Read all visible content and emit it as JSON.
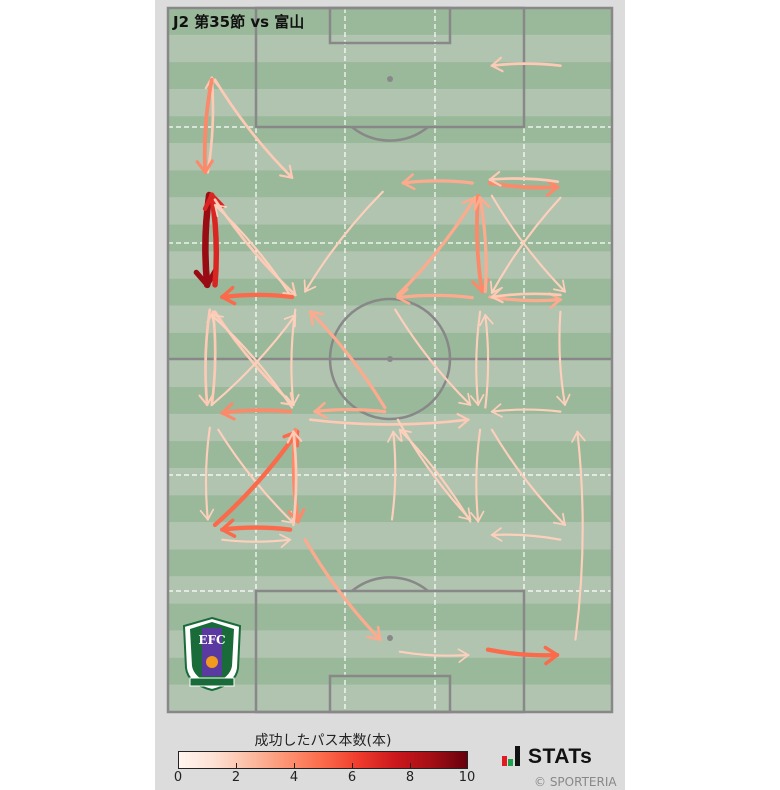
{
  "title": "J2 第35節 vs 富山",
  "colorbar": {
    "title": "成功したパス本数(本)",
    "ticks": [
      "0",
      "2",
      "4",
      "6",
      "8",
      "10"
    ],
    "range": [
      0,
      10
    ],
    "colormap": [
      "#fff5f0",
      "#fee0d2",
      "#fcbba1",
      "#fc9272",
      "#fb6a4a",
      "#ef3b2c",
      "#cb181d",
      "#a50f15",
      "#67000d"
    ]
  },
  "brand": {
    "logo_text": "STATs",
    "credit": "© SPORTERIA"
  },
  "colors": {
    "pitch_dark": "#9ab89a",
    "pitch_light": "#b0c4b0",
    "lines": "#888888",
    "zone_lines": "#ffffff"
  },
  "team_logo": {
    "icon": "ehime-fc-emblem",
    "text": "EFC"
  },
  "chart_data": {
    "type": "pass-map",
    "title": "J2 第35節 vs 富山",
    "units": "meters (x across pitch 0-68, y along pitch 0-105 from top goal line)",
    "passes": [
      {
        "from": [
          60.1,
          8.6
        ],
        "to": [
          49.6,
          8.6
        ],
        "count": 2
      },
      {
        "from": [
          6.1,
          24.5
        ],
        "to": [
          6.7,
          10.4
        ],
        "count": 2
      },
      {
        "from": [
          6.7,
          10.7
        ],
        "to": [
          5.7,
          24.5
        ],
        "count": 4
      },
      {
        "from": [
          7.2,
          10.7
        ],
        "to": [
          19.0,
          25.3
        ],
        "count": 2
      },
      {
        "from": [
          46.6,
          26.1
        ],
        "to": [
          36.0,
          26.1
        ],
        "count": 3
      },
      {
        "from": [
          49.3,
          26.1
        ],
        "to": [
          59.7,
          26.7
        ],
        "count": 4
      },
      {
        "from": [
          59.7,
          25.9
        ],
        "to": [
          49.3,
          25.6
        ],
        "count": 2
      },
      {
        "from": [
          6.3,
          27.9
        ],
        "to": [
          6.0,
          41.3
        ],
        "count": 9
      },
      {
        "from": [
          7.2,
          41.3
        ],
        "to": [
          6.7,
          27.9
        ],
        "count": 7
      },
      {
        "from": [
          7.2,
          28.6
        ],
        "to": [
          19.5,
          42.8
        ],
        "count": 2
      },
      {
        "from": [
          18.7,
          42.8
        ],
        "to": [
          7.2,
          29.4
        ],
        "count": 1
      },
      {
        "from": [
          32.9,
          27.4
        ],
        "to": [
          21.0,
          42.3
        ],
        "count": 1
      },
      {
        "from": [
          19.0,
          43.1
        ],
        "to": [
          8.3,
          43.1
        ],
        "count": 5
      },
      {
        "from": [
          35.2,
          42.8
        ],
        "to": [
          47.0,
          28.3
        ],
        "count": 3
      },
      {
        "from": [
          47.5,
          28.0
        ],
        "to": [
          48.1,
          42.3
        ],
        "count": 4
      },
      {
        "from": [
          48.6,
          42.3
        ],
        "to": [
          47.8,
          28.3
        ],
        "count": 3
      },
      {
        "from": [
          49.6,
          28.0
        ],
        "to": [
          60.8,
          42.3
        ],
        "count": 1
      },
      {
        "from": [
          60.1,
          28.3
        ],
        "to": [
          49.6,
          42.5
        ],
        "count": 1
      },
      {
        "from": [
          46.6,
          43.2
        ],
        "to": [
          35.2,
          43.2
        ],
        "count": 3
      },
      {
        "from": [
          49.3,
          43.1
        ],
        "to": [
          60.1,
          43.5
        ],
        "count": 3
      },
      {
        "from": [
          60.1,
          42.8
        ],
        "to": [
          49.6,
          43.1
        ],
        "count": 2
      },
      {
        "from": [
          6.4,
          45.0
        ],
        "to": [
          6.0,
          59.2
        ],
        "count": 2
      },
      {
        "from": [
          6.7,
          59.2
        ],
        "to": [
          6.9,
          45.3
        ],
        "count": 2
      },
      {
        "from": [
          7.2,
          45.3
        ],
        "to": [
          19.2,
          59.2
        ],
        "count": 2
      },
      {
        "from": [
          19.0,
          59.6
        ],
        "to": [
          6.7,
          45.8
        ],
        "count": 1
      },
      {
        "from": [
          19.5,
          45.0
        ],
        "to": [
          19.2,
          59.2
        ],
        "count": 1
      },
      {
        "from": [
          6.7,
          59.2
        ],
        "to": [
          19.5,
          45.8
        ],
        "count": 1
      },
      {
        "from": [
          33.2,
          59.6
        ],
        "to": [
          21.8,
          45.3
        ],
        "count": 3
      },
      {
        "from": [
          34.8,
          45.0
        ],
        "to": [
          46.3,
          59.2
        ],
        "count": 1
      },
      {
        "from": [
          47.8,
          45.3
        ],
        "to": [
          47.5,
          59.2
        ],
        "count": 1
      },
      {
        "from": [
          48.6,
          59.6
        ],
        "to": [
          48.6,
          45.8
        ],
        "count": 1
      },
      {
        "from": [
          60.1,
          45.3
        ],
        "to": [
          60.8,
          59.2
        ],
        "count": 1
      },
      {
        "from": [
          18.7,
          60.2
        ],
        "to": [
          8.3,
          60.4
        ],
        "count": 4
      },
      {
        "from": [
          33.2,
          60.2
        ],
        "to": [
          22.5,
          60.2
        ],
        "count": 3
      },
      {
        "from": [
          21.8,
          61.4
        ],
        "to": [
          46.0,
          61.4
        ],
        "count": 2
      },
      {
        "from": [
          60.1,
          60.2
        ],
        "to": [
          49.6,
          60.2
        ],
        "count": 1
      },
      {
        "from": [
          6.4,
          62.6
        ],
        "to": [
          6.1,
          76.3
        ],
        "count": 1
      },
      {
        "from": [
          7.7,
          62.9
        ],
        "to": [
          19.2,
          76.8
        ],
        "count": 1
      },
      {
        "from": [
          7.2,
          77.1
        ],
        "to": [
          19.8,
          63.2
        ],
        "count": 5
      },
      {
        "from": [
          19.5,
          62.9
        ],
        "to": [
          19.9,
          76.6
        ],
        "count": 4
      },
      {
        "from": [
          19.2,
          77.1
        ],
        "to": [
          19.2,
          63.2
        ],
        "count": 2
      },
      {
        "from": [
          18.7,
          77.8
        ],
        "to": [
          8.3,
          77.8
        ],
        "count": 5
      },
      {
        "from": [
          8.3,
          79.3
        ],
        "to": [
          18.7,
          79.3
        ],
        "count": 1
      },
      {
        "from": [
          34.3,
          76.3
        ],
        "to": [
          34.5,
          63.2
        ],
        "count": 1
      },
      {
        "from": [
          46.3,
          76.6
        ],
        "to": [
          35.5,
          62.9
        ],
        "count": 1
      },
      {
        "from": [
          35.2,
          61.4
        ],
        "to": [
          46.3,
          76.3
        ],
        "count": 1
      },
      {
        "from": [
          47.8,
          62.9
        ],
        "to": [
          47.5,
          76.6
        ],
        "count": 1
      },
      {
        "from": [
          49.6,
          62.9
        ],
        "to": [
          60.8,
          77.1
        ],
        "count": 1
      },
      {
        "from": [
          62.4,
          94.2
        ],
        "to": [
          62.7,
          63.2
        ],
        "count": 1
      },
      {
        "from": [
          60.1,
          79.3
        ],
        "to": [
          49.6,
          78.6
        ],
        "count": 1
      },
      {
        "from": [
          21.0,
          79.3
        ],
        "to": [
          32.5,
          94.2
        ],
        "count": 3
      },
      {
        "from": [
          35.5,
          96.0
        ],
        "to": [
          46.0,
          96.5
        ],
        "count": 1
      },
      {
        "from": [
          49.0,
          95.7
        ],
        "to": [
          59.6,
          96.5
        ],
        "count": 5
      }
    ]
  }
}
